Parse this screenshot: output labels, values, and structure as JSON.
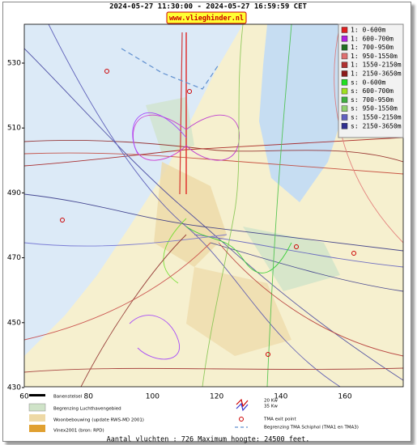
{
  "header": {
    "title": "2024-05-27 11:30:00 - 2024-05-27 16:59:59 CET",
    "site": "www.vlieghinder.nl"
  },
  "axes": {
    "y_ticks": [
      "530",
      "510",
      "490",
      "470",
      "450",
      "430"
    ],
    "x_ticks": [
      "60",
      "80",
      "100",
      "120",
      "140",
      "160"
    ]
  },
  "legend": [
    {
      "label": "1: 0-600m",
      "color": "#e02020"
    },
    {
      "label": "1: 600-700m",
      "color": "#b020e0"
    },
    {
      "label": "1: 700-950m",
      "color": "#207020"
    },
    {
      "label": "1: 950-1550m",
      "color": "#e07070"
    },
    {
      "label": "1: 1550-2150m",
      "color": "#b03030"
    },
    {
      "label": "1: 2150-3650m",
      "color": "#8b1a1a"
    },
    {
      "label": "s: 0-600m",
      "color": "#20e020"
    },
    {
      "label": "s: 600-700m",
      "color": "#a0e020"
    },
    {
      "label": "s: 700-950m",
      "color": "#40b040"
    },
    {
      "label": "s: 950-1550m",
      "color": "#90d070"
    },
    {
      "label": "s: 1550-2150m",
      "color": "#6060c0"
    },
    {
      "label": "s: 2150-3650m",
      "color": "#303090"
    }
  ],
  "map_legend": {
    "runways": "Banenstelsel",
    "airport_boundary": "Begrenzing Luchthavengebied",
    "housing": "Woonbebouwing (update RWS-MD 2001)",
    "vinex": "Vinex2001 (bron: RPD)",
    "kw20": "20 Kw",
    "kw35": "35 Kw",
    "tma_exit": "TMA exit point",
    "tma_boundary": "Begrenzing TMA Schiphol  (TMA1 en TMA3)"
  },
  "footer": "Aantal vluchten : 726 Maximum hoogte: 24500 feet."
}
